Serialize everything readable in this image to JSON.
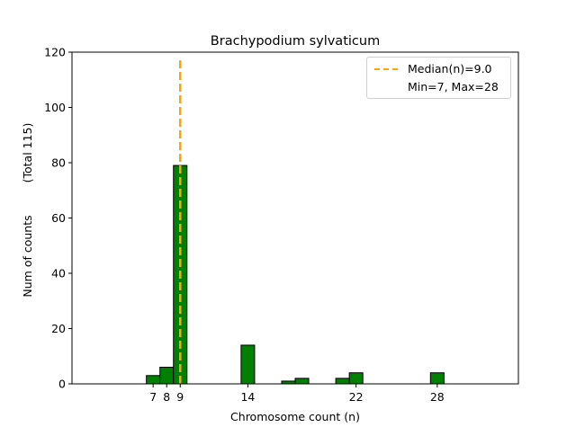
{
  "chart_data": {
    "type": "bar",
    "title": "Brachypodium sylvaticum",
    "xlabel": "Chromosome count (n)",
    "ylabel_main": "Num of counts",
    "ylabel_total": "(Total 115)",
    "xlim": [
      1,
      34
    ],
    "ylim": [
      0,
      120
    ],
    "yticks": [
      0,
      20,
      40,
      60,
      80,
      100,
      120
    ],
    "xticks": [
      7,
      8,
      9,
      14,
      22,
      28
    ],
    "bin_width": 1,
    "bars": [
      {
        "x": 7,
        "value": 3
      },
      {
        "x": 8,
        "value": 6
      },
      {
        "x": 9,
        "value": 79
      },
      {
        "x": 14,
        "value": 14
      },
      {
        "x": 17,
        "value": 1
      },
      {
        "x": 18,
        "value": 2
      },
      {
        "x": 21,
        "value": 2
      },
      {
        "x": 22,
        "value": 4
      },
      {
        "x": 28,
        "value": 4
      }
    ],
    "median": 9.0,
    "bar_color": "#008000",
    "median_color": "#ffa500",
    "legend": {
      "placement": "top-right",
      "median_label": "Median(n)=9.0",
      "range_label": "Min=7, Max=28"
    }
  }
}
